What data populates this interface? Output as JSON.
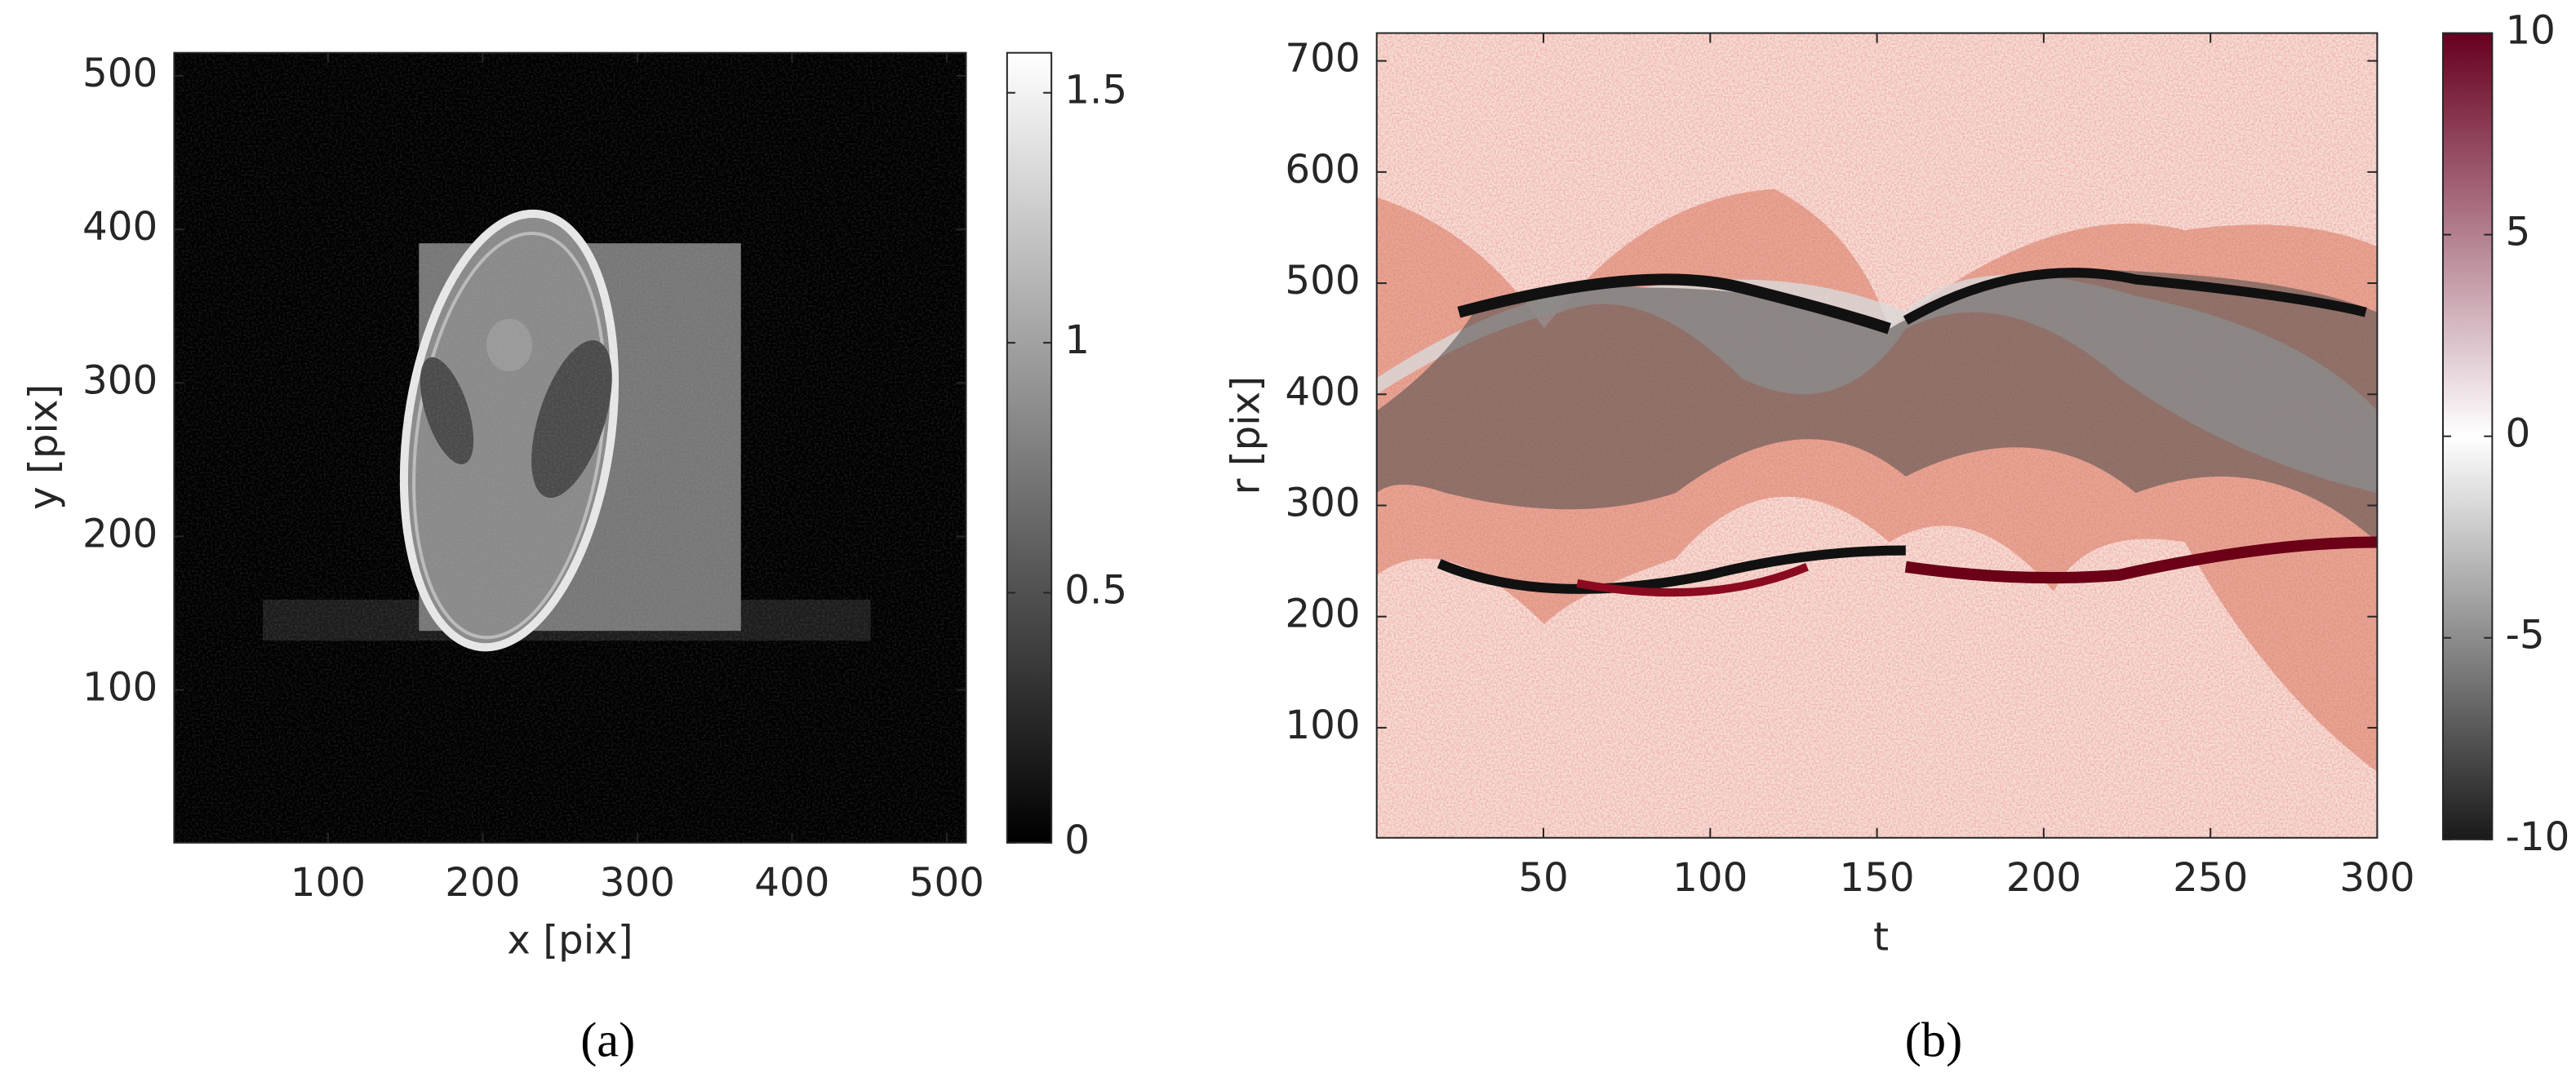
{
  "chart_data": [
    {
      "type": "image",
      "caption": "(a)",
      "xlabel": "x [pix]",
      "ylabel": "y [pix]",
      "xlim": [
        0.5,
        512.5
      ],
      "ylim": [
        0.5,
        515
      ],
      "xticks": [
        100,
        200,
        300,
        400,
        500
      ],
      "yticks": [
        100,
        200,
        300,
        400,
        500
      ],
      "clim": [
        0,
        1.58
      ],
      "cticks": [
        0,
        0.5,
        1,
        1.5
      ],
      "colormap": [
        "#000000",
        "#ffffff"
      ]
    },
    {
      "type": "image",
      "caption": "(b)",
      "xlabel": "t",
      "ylabel": "r [pix]",
      "xlim": [
        0,
        300
      ],
      "ylim": [
        1,
        725
      ],
      "xticks": [
        50,
        100,
        150,
        200,
        250,
        300
      ],
      "yticks": [
        100,
        200,
        300,
        400,
        500,
        600,
        700
      ],
      "clim": [
        -10,
        10
      ],
      "cticks": [
        -10,
        -5,
        0,
        5,
        10
      ],
      "colormap": [
        "#1a1a1a",
        "#ffffff",
        "#67001f"
      ]
    }
  ]
}
